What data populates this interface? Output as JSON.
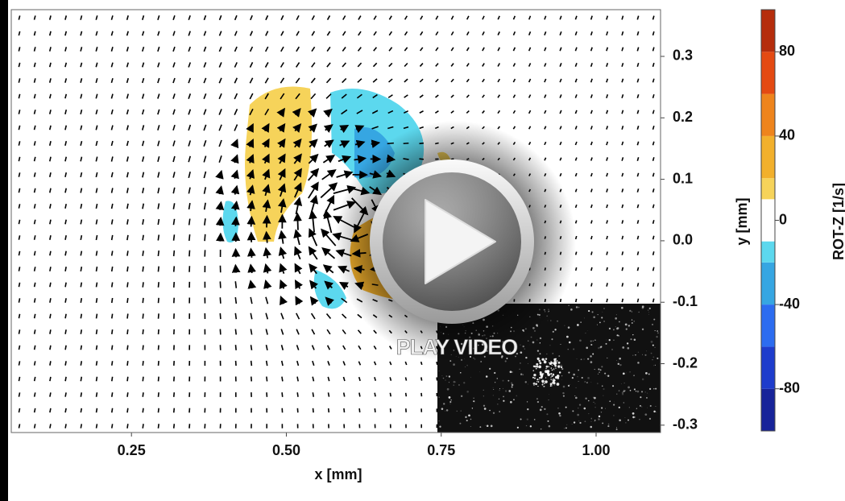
{
  "plot": {
    "x_axis": {
      "label": "x [mm]",
      "range": [
        0.056,
        1.104
      ],
      "ticks": [
        {
          "value": 0.25,
          "label": "0.25"
        },
        {
          "value": 0.5,
          "label": "0.50"
        },
        {
          "value": 0.75,
          "label": "0.75"
        },
        {
          "value": 1,
          "label": "1.00"
        }
      ]
    },
    "y_axis": {
      "label": "y [mm]",
      "range": [
        -0.312,
        0.376
      ],
      "ticks": [
        0.3,
        0.2,
        0.1,
        {
          "value": 0,
          "label": "0.0"
        },
        -0.1,
        -0.2,
        -0.3
      ]
    },
    "colorbar": {
      "label": "ROT-Z [1/s]",
      "range": [
        -100,
        100
      ],
      "ticks": [
        80,
        40,
        0,
        -40,
        -80
      ],
      "levels": [
        -100,
        -80,
        -60,
        -40,
        -20,
        -10,
        10,
        20,
        40,
        60,
        80,
        100
      ],
      "colors": [
        "#17239a",
        "#1e3ccc",
        "#2c6cf0",
        "#36a6e2",
        "#5cd8ee",
        "#ffffff",
        "#f6d35a",
        "#f2b02c",
        "#ee841c",
        "#e44a12",
        "#b52d0c"
      ]
    }
  },
  "video": {
    "play_label": "PLAY VIDEO"
  }
}
